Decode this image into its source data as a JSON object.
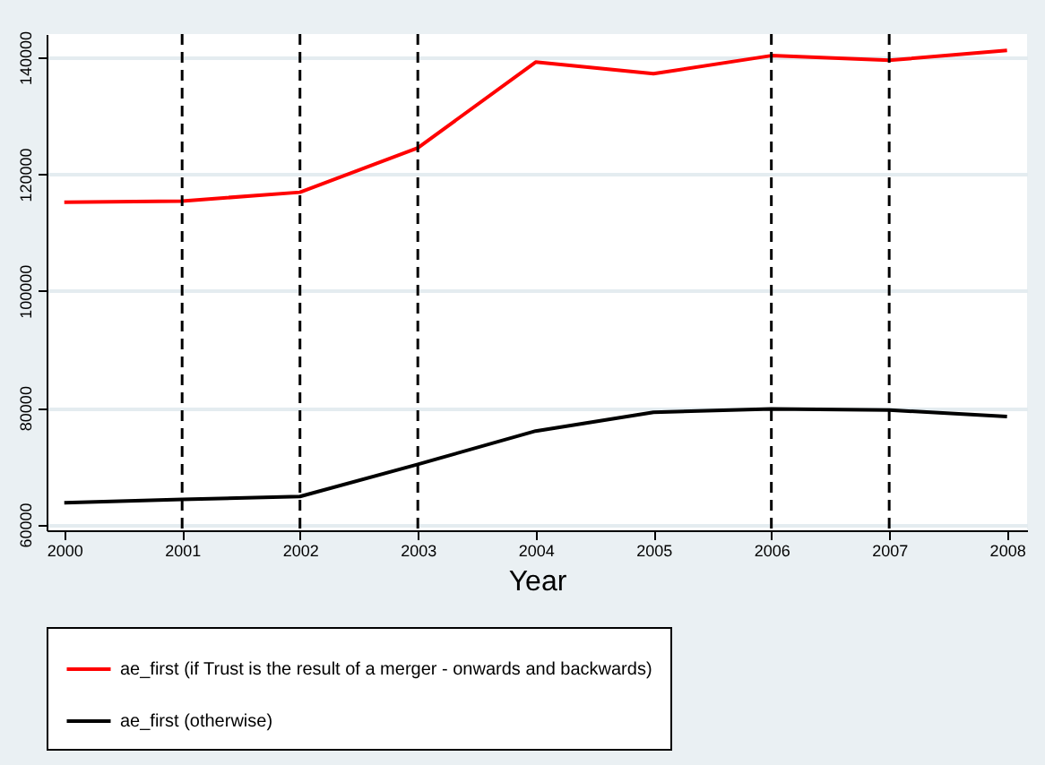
{
  "chart_data": {
    "type": "line",
    "xlabel": "Year",
    "x": [
      2000,
      2001,
      2002,
      2003,
      2004,
      2005,
      2006,
      2007,
      2008
    ],
    "series": [
      {
        "name": "ae_first (if Trust is the result of a merger - onwards and backwards)",
        "color": "#ff0000",
        "values": [
          115200,
          115400,
          116900,
          124500,
          139200,
          137200,
          140300,
          139500,
          141200
        ]
      },
      {
        "name": "ae_first (otherwise)",
        "color": "#000000",
        "values": [
          63700,
          64300,
          64800,
          70300,
          76000,
          79200,
          79800,
          79600,
          78500
        ]
      }
    ],
    "xlim": [
      1999.85,
      2008.17
    ],
    "xticks": [
      2000,
      2001,
      2002,
      2003,
      2004,
      2005,
      2006,
      2007,
      2008
    ],
    "ylim": [
      59000,
      144000
    ],
    "yticks": [
      60000,
      80000,
      100000,
      120000,
      140000
    ],
    "ref_lines": [
      {
        "axis": "x",
        "value": 2001,
        "color": "#000000",
        "line_style": "dashed"
      },
      {
        "axis": "x",
        "value": 2002,
        "color": "#000000",
        "line_style": "dashed"
      },
      {
        "axis": "x",
        "value": 2003,
        "color": "#000000",
        "line_style": "dashed"
      },
      {
        "axis": "x",
        "value": 2006,
        "color": "#000000",
        "line_style": "dashed"
      },
      {
        "axis": "x",
        "value": 2007,
        "color": "#000000",
        "line_style": "dashed"
      }
    ],
    "grid": "y",
    "legend": "bottom",
    "marker": "none",
    "line_style": "solid"
  }
}
